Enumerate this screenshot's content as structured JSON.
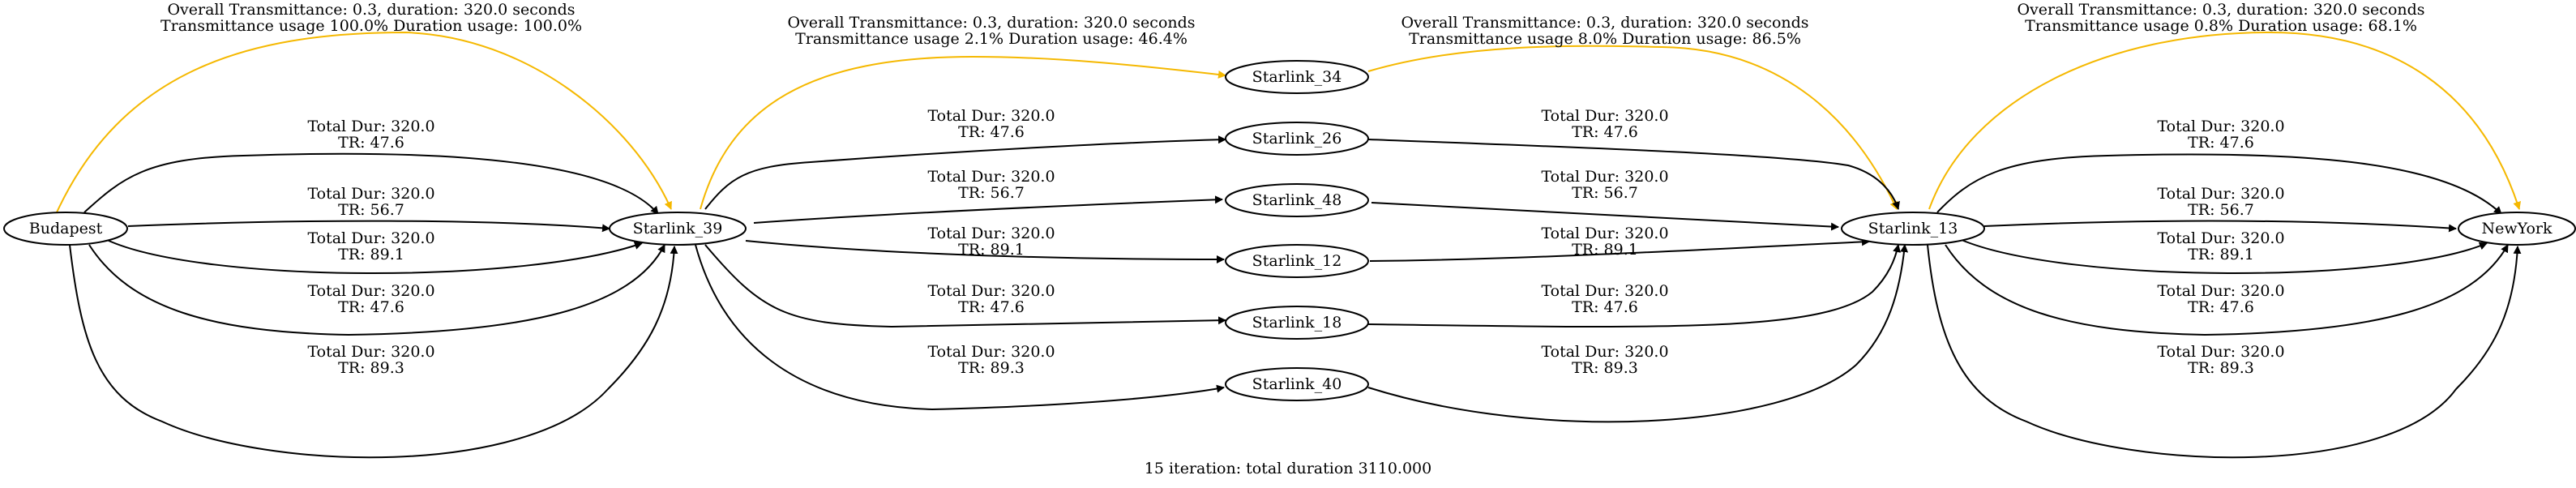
{
  "graph": {
    "caption": "15 iteration: total duration 3110.000",
    "colors": {
      "default_edge": "#000000",
      "highlight_edge": "#f5b800",
      "background": "#ffffff"
    },
    "nodes": {
      "budapest": "Budapest",
      "starlink_39": "Starlink_39",
      "starlink_34": "Starlink_34",
      "starlink_26": "Starlink_26",
      "starlink_48": "Starlink_48",
      "starlink_12": "Starlink_12",
      "starlink_18": "Starlink_18",
      "starlink_40": "Starlink_40",
      "starlink_13": "Starlink_13",
      "newyork": "NewYork"
    },
    "edges": {
      "bud_s39_gold": [
        "Overall Transmittance: 0.3, duration: 320.0 seconds",
        "Transmittance usage 100.0% Duration usage: 100.0%"
      ],
      "bud_s39_1": [
        "Total Dur: 320.0",
        "TR: 47.6"
      ],
      "bud_s39_2": [
        "Total Dur: 320.0",
        "TR: 56.7"
      ],
      "bud_s39_3": [
        "Total Dur: 320.0",
        "TR: 89.1"
      ],
      "bud_s39_4": [
        "Total Dur: 320.0",
        "TR: 47.6"
      ],
      "bud_s39_5": [
        "Total Dur: 320.0",
        "TR: 89.3"
      ],
      "s39_s34_gold": [
        "Overall Transmittance: 0.3, duration: 320.0 seconds",
        "Transmittance usage 2.1% Duration usage: 46.4%"
      ],
      "s39_s26": [
        "Total Dur: 320.0",
        "TR: 47.6"
      ],
      "s39_s48": [
        "Total Dur: 320.0",
        "TR: 56.7"
      ],
      "s39_s12": [
        "Total Dur: 320.0",
        "TR: 89.1"
      ],
      "s39_s18": [
        "Total Dur: 320.0",
        "TR: 47.6"
      ],
      "s39_s40": [
        "Total Dur: 320.0",
        "TR: 89.3"
      ],
      "s34_s13_gold": [
        "Overall Transmittance: 0.3, duration: 320.0 seconds",
        "Transmittance usage 8.0% Duration usage: 86.5%"
      ],
      "s26_s13": [
        "Total Dur: 320.0",
        "TR: 47.6"
      ],
      "s48_s13": [
        "Total Dur: 320.0",
        "TR: 56.7"
      ],
      "s12_s13": [
        "Total Dur: 320.0",
        "TR: 89.1"
      ],
      "s18_s13": [
        "Total Dur: 320.0",
        "TR: 47.6"
      ],
      "s40_s13": [
        "Total Dur: 320.0",
        "TR: 89.3"
      ],
      "s13_ny_gold": [
        "Overall Transmittance: 0.3, duration: 320.0 seconds",
        "Transmittance usage 0.8% Duration usage: 68.1%"
      ],
      "s13_ny_1": [
        "Total Dur: 320.0",
        "TR: 47.6"
      ],
      "s13_ny_2": [
        "Total Dur: 320.0",
        "TR: 56.7"
      ],
      "s13_ny_3": [
        "Total Dur: 320.0",
        "TR: 89.1"
      ],
      "s13_ny_4": [
        "Total Dur: 320.0",
        "TR: 47.6"
      ],
      "s13_ny_5": [
        "Total Dur: 320.0",
        "TR: 89.3"
      ]
    }
  }
}
